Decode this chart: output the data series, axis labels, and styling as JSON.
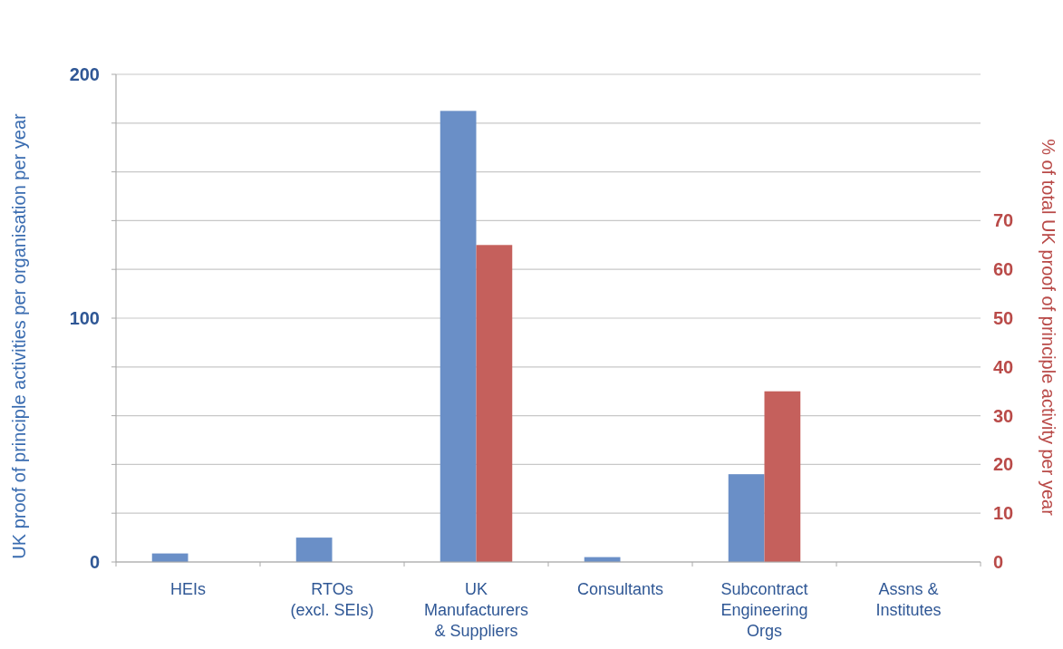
{
  "chart_data": {
    "type": "bar",
    "ylabel": "UK proof of principle activities per organisation per year",
    "y2label": "% of total UK proof of principle activity per year",
    "categories": [
      "HEIs",
      "RTOs\n(excl. SEIs)",
      "UK\nManufacturers\n& Suppliers",
      "Consultants",
      "Subcontract\nEngineering\nOrgs",
      "Assns &\nInstitutes"
    ],
    "series": [
      {
        "color": "#6a8fc7",
        "values": [
          3.5,
          10,
          185,
          2,
          36,
          0
        ]
      },
      {
        "color": "#c5605c",
        "axis": "y2",
        "values": [
          0,
          0,
          65,
          0,
          35,
          0
        ]
      }
    ],
    "ylim": [
      0,
      200
    ],
    "yticks": [
      0,
      {
        "value": 20,
        "label": null
      },
      {
        "value": 40,
        "label": null
      },
      {
        "value": 60,
        "label": null
      },
      {
        "value": 80,
        "label": null
      },
      100,
      {
        "value": 120,
        "label": null
      },
      {
        "value": 140,
        "label": null
      },
      {
        "value": 160,
        "label": null
      },
      {
        "value": 180,
        "label": null
      },
      200
    ],
    "y2lim": [
      0,
      100
    ],
    "y2ticks": [
      0,
      10,
      20,
      30,
      40,
      50,
      60,
      70
    ],
    "grid": "y"
  }
}
